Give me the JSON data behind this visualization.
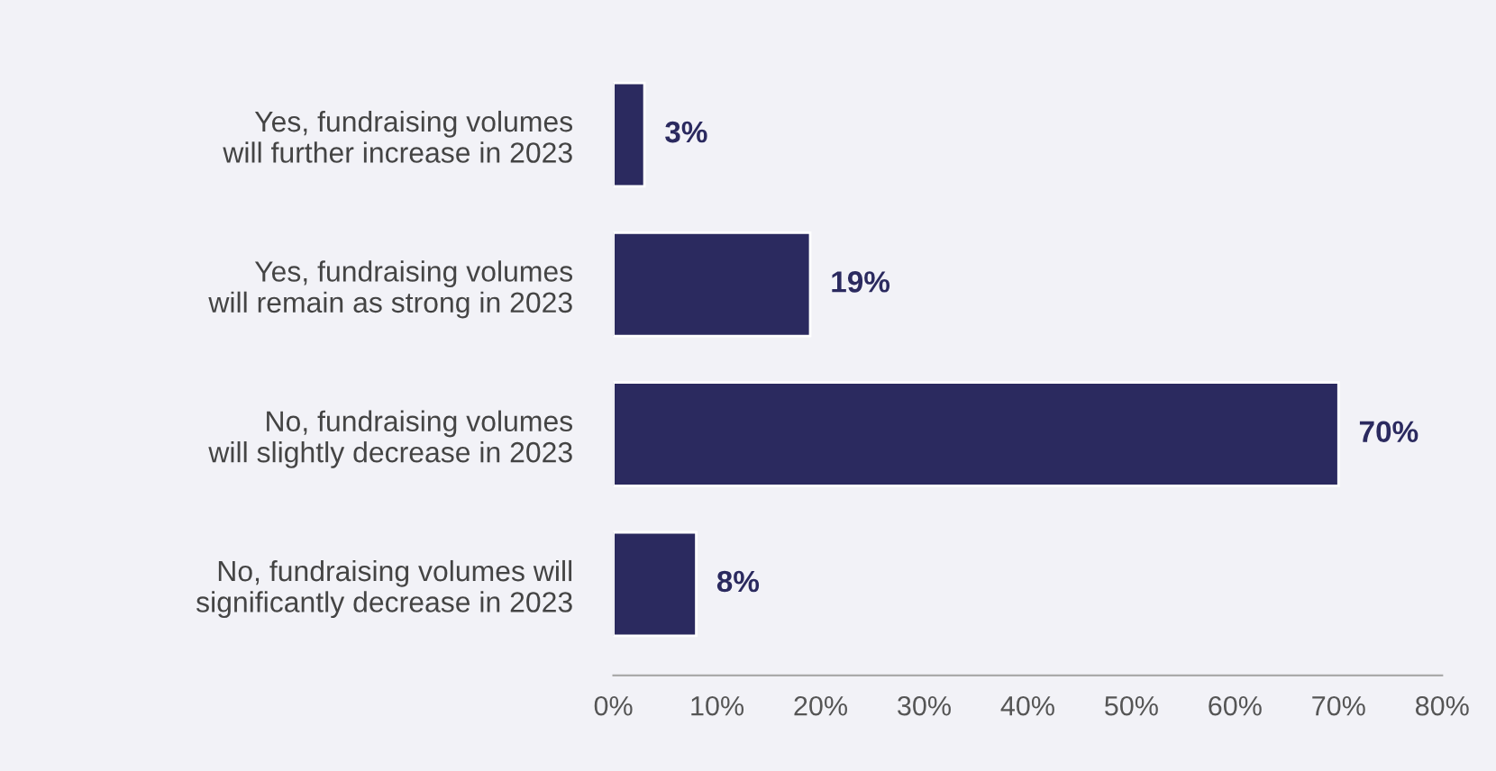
{
  "chart_data": {
    "type": "bar",
    "orientation": "horizontal",
    "categories": [
      "Yes, fundraising volumes\nwill further increase in 2023",
      "Yes, fundraising volumes\nwill remain as strong in 2023",
      "No, fundraising volumes\nwill slightly decrease in 2023",
      "No, fundraising volumes will\nsignificantly decrease in 2023"
    ],
    "values": [
      3,
      19,
      70,
      8
    ],
    "value_labels": [
      "3%",
      "19%",
      "70%",
      "8%"
    ],
    "color": "#2b2a5f",
    "xlim": [
      0,
      80
    ],
    "xticks": [
      {
        "value": 0,
        "label": "0%"
      },
      {
        "value": 10,
        "label": "10%"
      },
      {
        "value": 20,
        "label": "20%"
      },
      {
        "value": 30,
        "label": "30%"
      },
      {
        "value": 40,
        "label": "40%"
      },
      {
        "value": 50,
        "label": "50%"
      },
      {
        "value": 60,
        "label": "60%"
      },
      {
        "value": 70,
        "label": "70%"
      },
      {
        "value": 80,
        "label": "80%"
      }
    ],
    "grid": false,
    "legend": false
  }
}
